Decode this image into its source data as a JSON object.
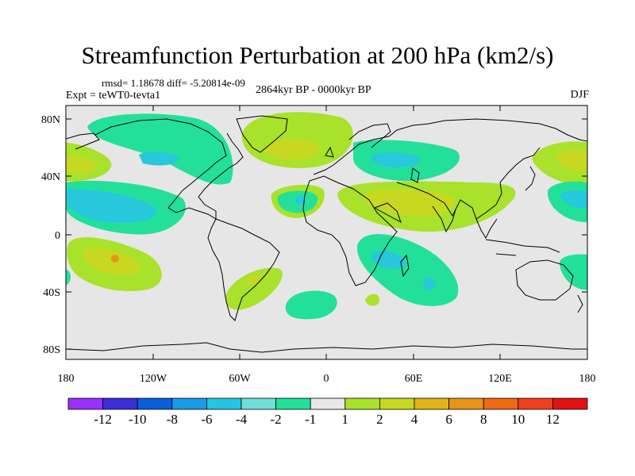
{
  "title": "Streamfunction Perturbation at 200 hPa (km2/s)",
  "stats_text": "rmsd= 1.18678 diff= -5.20814e-09",
  "experiment_text": "Expt = teWT0-tevta1",
  "period_text": "2864kyr BP - 0000kyr BP",
  "season": "DJF",
  "lat_ticks": [
    "80N",
    "40N",
    "0",
    "40S",
    "80S"
  ],
  "lon_ticks": [
    "180",
    "120W",
    "60W",
    "0",
    "60E",
    "120E",
    "180"
  ],
  "colorbar": {
    "colors": [
      "#9b30ff",
      "#3a2fd6",
      "#0a5fd8",
      "#1a9be8",
      "#22c6e3",
      "#6fe0d8",
      "#22e09a",
      "#e8e8e8",
      "#a8e22a",
      "#c8d820",
      "#e0b418",
      "#e89418",
      "#ec6a14",
      "#f0401a",
      "#e21212"
    ],
    "labels": [
      "-12",
      "-10",
      "-8",
      "-6",
      "-4",
      "-2",
      "-1",
      "1",
      "2",
      "4",
      "6",
      "8",
      "10",
      "12"
    ]
  },
  "field_colors": {
    "background": "#e6e6e6",
    "neg1": "#22e09a",
    "neg2": "#27c7dc",
    "pos1": "#a8e22a",
    "pos2": "#c8d820",
    "pos3": "#e0b418",
    "pos4": "#e89418"
  }
}
